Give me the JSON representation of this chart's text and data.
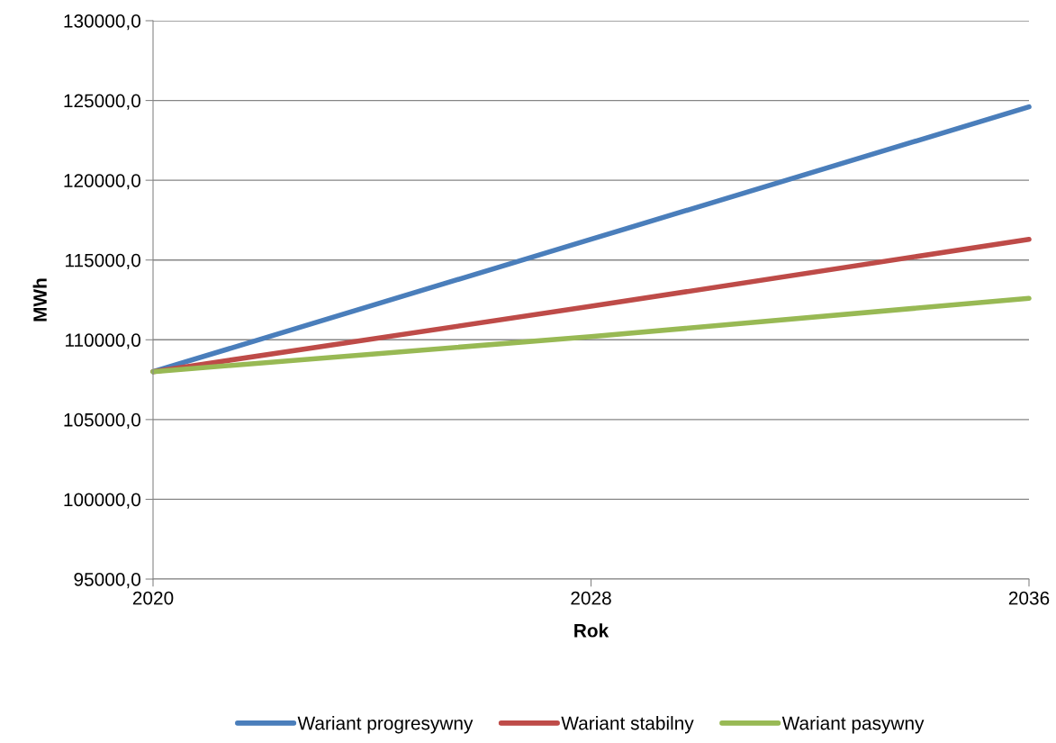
{
  "chart_data": {
    "type": "line",
    "xlabel": "Rok",
    "ylabel": "MWh",
    "x": [
      2020,
      2028,
      2036
    ],
    "series": [
      {
        "name": "Wariant progresywny",
        "color": "#4a7ebb",
        "values": [
          108000,
          116300,
          124600
        ]
      },
      {
        "name": "Wariant stabilny",
        "color": "#be4b48",
        "values": [
          108000,
          112100,
          116300
        ]
      },
      {
        "name": "Wariant pasywny",
        "color": "#98b954",
        "values": [
          108000,
          110200,
          112600
        ]
      }
    ],
    "xlim": [
      2020,
      2036
    ],
    "xticks": [
      2020,
      2028,
      2036
    ],
    "ylim": [
      95000,
      130000
    ],
    "yticks": [
      {
        "value": 95000,
        "label": "95000,0"
      },
      {
        "value": 100000,
        "label": "100000,0"
      },
      {
        "value": 105000,
        "label": "105000,0"
      },
      {
        "value": 110000,
        "label": "110000,0"
      },
      {
        "value": 115000,
        "label": "115000,0"
      },
      {
        "value": 120000,
        "label": "120000,0"
      },
      {
        "value": 125000,
        "label": "125000,0"
      },
      {
        "value": 130000,
        "label": "130000,0"
      }
    ],
    "grid": "y",
    "legend": "bottom",
    "marker": "none",
    "line_style": "solid"
  }
}
